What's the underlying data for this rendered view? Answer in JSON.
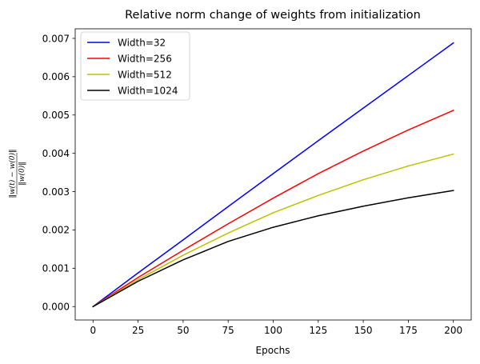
{
  "chart_data": {
    "type": "line",
    "title": "Relative norm change of weights from initialization",
    "xlabel": "Epochs",
    "ylabel": "||w(t) − w(0)|| / ||w(0)||",
    "xlim": [
      -9.9,
      209.9
    ],
    "ylim": [
      -0.00035,
      0.00725
    ],
    "xticks": [
      0,
      25,
      50,
      75,
      100,
      125,
      150,
      175,
      200
    ],
    "yticks": [
      0.0,
      0.001,
      0.002,
      0.003,
      0.004,
      0.005,
      0.006,
      0.007
    ],
    "ytick_labels": [
      "0.000",
      "0.001",
      "0.002",
      "0.003",
      "0.004",
      "0.005",
      "0.006",
      "0.007"
    ],
    "grid": false,
    "legend_position": "top-left",
    "x": [
      0,
      25,
      50,
      75,
      100,
      125,
      150,
      175,
      200
    ],
    "series": [
      {
        "name": "Width=32",
        "color": "#0000ff",
        "values": [
          0.0,
          0.00088,
          0.00174,
          0.00261,
          0.00347,
          0.00433,
          0.00518,
          0.00603,
          0.00688
        ]
      },
      {
        "name": "Width=256",
        "color": "#ff0000",
        "values": [
          0.0,
          0.00076,
          0.00147,
          0.00216,
          0.00283,
          0.00347,
          0.00406,
          0.00461,
          0.00512
        ]
      },
      {
        "name": "Width=512",
        "color": "#bfbf00",
        "values": [
          0.0,
          0.0007,
          0.00134,
          0.00192,
          0.00245,
          0.0029,
          0.00331,
          0.00367,
          0.00398
        ]
      },
      {
        "name": "Width=1024",
        "color": "#000000",
        "values": [
          0.0,
          0.00066,
          0.00122,
          0.0017,
          0.00207,
          0.00237,
          0.00262,
          0.00284,
          0.00303
        ]
      }
    ]
  }
}
